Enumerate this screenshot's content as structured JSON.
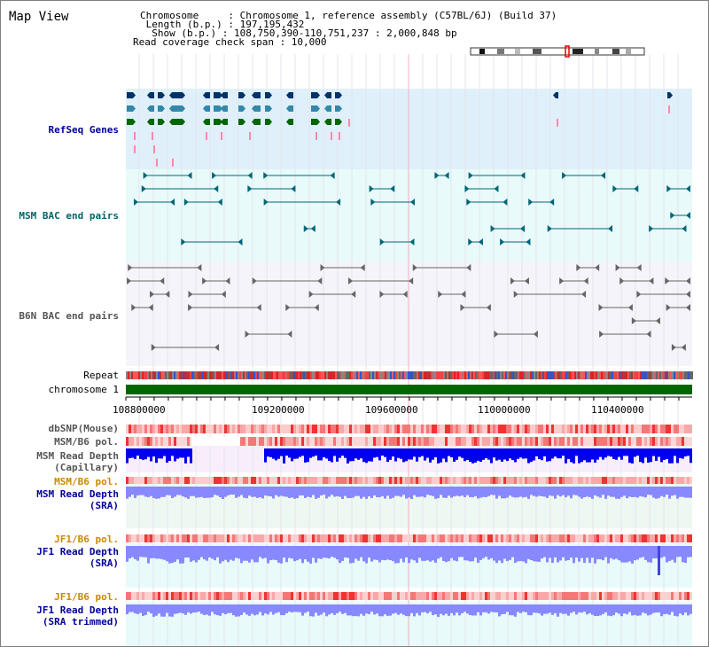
{
  "header": {
    "title": "Map View",
    "chromosome_line": "Chromosome     : Chromosome 1, reference assembly (C57BL/6J) (Build 37)",
    "length_line": " Length (b.p.) : 197,195,432",
    "show_line": "  Show (b.p.) : 108,750,390-110,751,237 : 2,000,848 bp",
    "coverage_line": "Read coverage check span : 10,000"
  },
  "tracks": {
    "refseq": "RefSeq Genes",
    "msm_bac": "MSM BAC end pairs",
    "b6n_bac": "B6N BAC end pairs",
    "repeat": "Repeat",
    "chromosome": "chromosome 1",
    "dbsnp": "dbSNP(Mouse)",
    "msm_b6_pol_1": "MSM/B6 pol.",
    "msm_depth_cap_1": "MSM Read Depth",
    "msm_depth_cap_2": "(Capillary)",
    "msm_b6_pol_2": "MSM/B6 pol.",
    "msm_depth_sra_1": "MSM Read Depth",
    "msm_depth_sra_2": "(SRA)",
    "jf1_b6_pol_1": "JF1/B6 pol.",
    "jf1_depth_sra_1": "JF1 Read Depth",
    "jf1_depth_sra_2": "(SRA)",
    "jf1_b6_pol_2": "JF1/B6 pol.",
    "jf1_depth_trim_1": "JF1 Read Depth",
    "jf1_depth_trim_2": "(SRA trimmed)"
  },
  "axis": {
    "ticks": [
      "108800000",
      "109200000",
      "109600000",
      "110000000",
      "110400000"
    ]
  },
  "colors": {
    "refseq_bg": "#dff0fa",
    "msm_bg": "#e8fafa",
    "b6n_bg": "#f4f4fa",
    "chromosome_bar": "#006600",
    "refseq_dark": "#003366",
    "refseq_mid": "#3388aa",
    "refseq_green": "#006600",
    "bac_teal": "#006677",
    "bac_gray": "#666666",
    "depth_blue": "#0000ee",
    "depth_light": "#8888ff"
  }
}
